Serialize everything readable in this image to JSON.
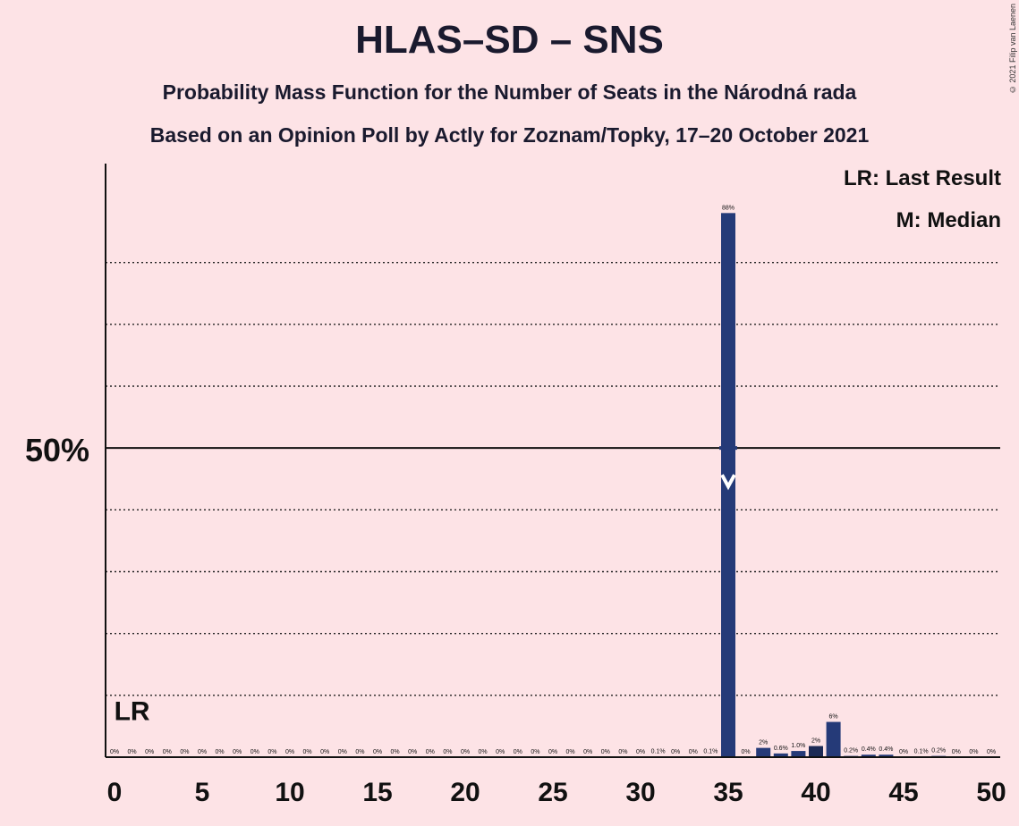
{
  "title": "HLAS–SD – SNS",
  "subtitle_1": "Probability Mass Function for the Number of Seats in the Národná rada",
  "subtitle_2": "Based on an Opinion Poll by Actly for Zoznam/Topky, 17–20 October 2021",
  "copyright": "© 2021 Filip van Laenen",
  "legend": {
    "last_result": "LR: Last Result",
    "median": "M: Median"
  },
  "colors": {
    "background": "#fde3e6",
    "bar": "#253a78",
    "bar_dark": "#1c2a55"
  },
  "chart_data": {
    "type": "bar",
    "title": "HLAS–SD – SNS",
    "x": [
      0,
      1,
      2,
      3,
      4,
      5,
      6,
      7,
      8,
      9,
      10,
      11,
      12,
      13,
      14,
      15,
      16,
      17,
      18,
      19,
      20,
      21,
      22,
      23,
      24,
      25,
      26,
      27,
      28,
      29,
      30,
      31,
      32,
      33,
      34,
      35,
      36,
      37,
      38,
      39,
      40,
      41,
      42,
      43,
      44,
      45,
      46,
      47,
      48,
      49,
      50
    ],
    "values": [
      0,
      0,
      0,
      0,
      0,
      0,
      0,
      0,
      0,
      0,
      0,
      0,
      0,
      0,
      0,
      0,
      0,
      0,
      0,
      0,
      0,
      0,
      0,
      0,
      0,
      0,
      0,
      0,
      0,
      0,
      0,
      0.1,
      0,
      0,
      0.1,
      88,
      0,
      1.5,
      0.6,
      1.0,
      1.8,
      5.7,
      0.2,
      0.4,
      0.4,
      0,
      0.1,
      0.2,
      0,
      0,
      0
    ],
    "labels": [
      "0%",
      "0%",
      "0%",
      "0%",
      "0%",
      "0%",
      "0%",
      "0%",
      "0%",
      "0%",
      "0%",
      "0%",
      "0%",
      "0%",
      "0%",
      "0%",
      "0%",
      "0%",
      "0%",
      "0%",
      "0%",
      "0%",
      "0%",
      "0%",
      "0%",
      "0%",
      "0%",
      "0%",
      "0%",
      "0%",
      "0%",
      "0.1%",
      "0%",
      "0%",
      "0.1%",
      "88%",
      "0%",
      "2%",
      "0.6%",
      "1.0%",
      "2%",
      "6%",
      "0.2%",
      "0.4%",
      "0.4%",
      "0%",
      "0.1%",
      "0.2%",
      "0%",
      "0%",
      "0%"
    ],
    "xticks": [
      0,
      5,
      10,
      15,
      20,
      25,
      30,
      35,
      40,
      45,
      50
    ],
    "ytick_label": "50%",
    "ylim": [
      0,
      96
    ],
    "gridlines": [
      10,
      20,
      30,
      40,
      60,
      70,
      80
    ],
    "last_result": 1,
    "last_result_label": "LR",
    "median": 35,
    "dark_bars": [
      40
    ]
  }
}
